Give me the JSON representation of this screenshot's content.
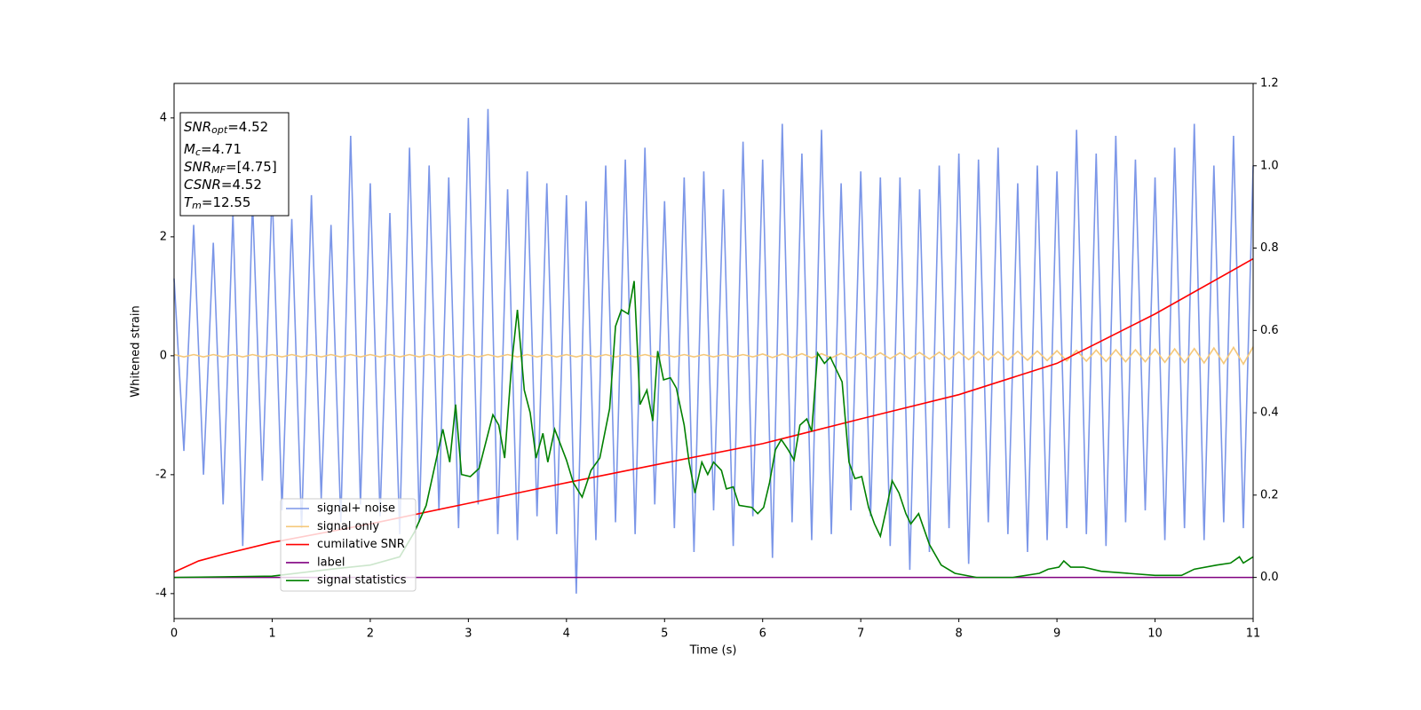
{
  "chart_data": {
    "type": "line",
    "xlabel": "Time (s)",
    "ylabel": "Whitened strain",
    "xlim": [
      0,
      11
    ],
    "xticks": [
      0,
      1,
      2,
      3,
      4,
      5,
      6,
      7,
      8,
      9,
      10,
      11
    ],
    "ylim": [
      -4.42,
      4.58
    ],
    "yticks": [
      -4,
      -2,
      0,
      2,
      4
    ],
    "y2lim": [
      -0.1,
      1.2
    ],
    "y2ticks": [
      {
        "value": 0,
        "label": "0.0"
      },
      {
        "value": 0.2,
        "label": "0.2"
      },
      {
        "value": 0.4,
        "label": "0.4"
      },
      {
        "value": 0.6,
        "label": "0.6"
      },
      {
        "value": 0.8,
        "label": "0.8"
      },
      {
        "value": 1.0,
        "label": "1.0"
      },
      {
        "value": 1.2,
        "label": "1.2"
      }
    ],
    "legend_loc": "lower left",
    "annotations": [
      {
        "main": "SNR",
        "sub": "opt",
        "rest": "=4.52"
      },
      {
        "main": "M",
        "sub": "c",
        "rest": "=4.71"
      },
      {
        "main": "SNR",
        "sub": "MF",
        "rest": "=[4.75]"
      },
      {
        "main": "CSNR",
        "rest": "=4.52"
      },
      {
        "main": "T",
        "sub": "m",
        "rest": "=12.55"
      }
    ],
    "x": [
      0,
      0.1,
      0.2,
      0.3,
      0.4,
      0.5,
      0.6,
      0.7,
      0.8,
      0.9,
      1,
      1.1,
      1.2,
      1.3,
      1.4,
      1.5,
      1.6,
      1.7,
      1.8,
      1.9,
      2,
      2.1,
      2.2,
      2.3,
      2.4,
      2.5,
      2.6,
      2.7,
      2.8,
      2.9,
      3,
      3.1,
      3.2,
      3.3,
      3.4,
      3.5,
      3.6,
      3.7,
      3.8,
      3.9,
      4,
      4.1,
      4.2,
      4.3,
      4.4,
      4.5,
      4.6,
      4.7,
      4.8,
      4.9,
      5,
      5.1,
      5.2,
      5.3,
      5.4,
      5.5,
      5.6,
      5.7,
      5.8,
      5.9,
      6,
      6.1,
      6.2,
      6.3,
      6.4,
      6.5,
      6.6,
      6.7,
      6.8,
      6.9,
      7,
      7.1,
      7.2,
      7.3,
      7.4,
      7.5,
      7.6,
      7.7,
      7.8,
      7.9,
      8,
      8.1,
      8.2,
      8.3,
      8.4,
      8.5,
      8.6,
      8.7,
      8.8,
      8.9,
      9,
      9.1,
      9.2,
      9.3,
      9.4,
      9.5,
      9.6,
      9.7,
      9.8,
      9.9,
      10,
      10.1,
      10.2,
      10.3,
      10.4,
      10.5,
      10.6,
      10.7,
      10.8,
      10.9,
      11
    ],
    "series": [
      {
        "name": "signal+ noise",
        "color": "#7b96e8",
        "values": [
          1.3,
          -1.6,
          2.2,
          -2.0,
          1.9,
          -2.5,
          2.4,
          -3.2,
          2.6,
          -2.1,
          2.8,
          -2.6,
          2.3,
          -2.9,
          2.7,
          -2.4,
          2.2,
          -2.8,
          3.7,
          -2.5,
          2.9,
          -2.7,
          2.4,
          -3.0,
          3.5,
          -2.8,
          3.2,
          -2.6,
          3.0,
          -2.9,
          4.0,
          -2.5,
          4.15,
          -3.0,
          2.8,
          -3.1,
          3.1,
          -2.7,
          2.9,
          -3.0,
          2.7,
          -4.0,
          2.6,
          -3.1,
          3.2,
          -2.8,
          3.3,
          -3.0,
          3.5,
          -2.5,
          2.6,
          -2.9,
          3.0,
          -3.3,
          3.1,
          -2.6,
          2.8,
          -3.2,
          3.6,
          -2.7,
          3.3,
          -3.4,
          3.9,
          -2.8,
          3.4,
          -3.1,
          3.8,
          -3.0,
          2.9,
          -2.6,
          3.1,
          -2.7,
          3.0,
          -3.2,
          3.0,
          -3.6,
          2.8,
          -3.3,
          3.2,
          -2.9,
          3.4,
          -3.5,
          3.3,
          -2.8,
          3.5,
          -3.0,
          2.9,
          -3.3,
          3.2,
          -3.1,
          3.1,
          -2.9,
          3.8,
          -3.0,
          3.4,
          -3.2,
          3.7,
          -2.8,
          3.3,
          -2.6,
          3.0,
          -3.1,
          3.5,
          -2.9,
          3.9,
          -3.1,
          3.2,
          -2.8,
          3.7,
          -2.9,
          3.2
        ]
      },
      {
        "name": "signal only",
        "color": "#f5c87a",
        "values": [
          0.02,
          -0.02,
          0.02,
          -0.02,
          0.02,
          -0.02,
          0.02,
          -0.02,
          0.02,
          -0.02,
          0.02,
          -0.02,
          0.02,
          -0.02,
          0.02,
          -0.02,
          0.02,
          -0.02,
          0.02,
          -0.02,
          0.02,
          -0.02,
          0.02,
          -0.02,
          0.02,
          -0.02,
          0.02,
          -0.02,
          0.02,
          -0.02,
          0.02,
          -0.02,
          0.02,
          -0.02,
          0.02,
          -0.02,
          0.02,
          -0.02,
          0.02,
          -0.02,
          0.02,
          -0.02,
          0.02,
          -0.02,
          0.02,
          -0.02,
          0.02,
          -0.02,
          0.02,
          -0.02,
          0.02,
          -0.02,
          0.02,
          -0.02,
          0.02,
          -0.02,
          0.02,
          -0.02,
          0.02,
          -0.02,
          0.03,
          -0.03,
          0.03,
          -0.03,
          0.035,
          -0.035,
          0.035,
          -0.035,
          0.04,
          -0.04,
          0.045,
          -0.045,
          0.05,
          -0.05,
          0.05,
          -0.05,
          0.055,
          -0.055,
          0.06,
          -0.06,
          0.065,
          -0.065,
          0.07,
          -0.07,
          0.07,
          -0.07,
          0.075,
          -0.075,
          0.08,
          -0.08,
          0.085,
          -0.085,
          0.09,
          -0.09,
          0.095,
          -0.095,
          0.1,
          -0.1,
          0.1,
          -0.1,
          0.11,
          -0.11,
          0.115,
          -0.115,
          0.12,
          -0.12,
          0.13,
          -0.13,
          0.14,
          -0.14,
          0.15
        ]
      },
      {
        "name": "cumilative SNR",
        "color": "#ff0000",
        "axis": "y2",
        "x": [
          0,
          0.25,
          0.5,
          1,
          2,
          3,
          4,
          5,
          6,
          7,
          8,
          9,
          10,
          11
        ],
        "values": [
          0.013,
          0.04,
          0.056,
          0.085,
          0.13,
          0.18,
          0.23,
          0.278,
          0.325,
          0.385,
          0.444,
          0.52,
          0.64,
          0.774
        ]
      },
      {
        "name": "label",
        "color": "#800080",
        "axis": "y2",
        "x": [
          0,
          11
        ],
        "values": [
          0,
          0
        ]
      },
      {
        "name": "signal statistics",
        "color": "#008000",
        "axis": "y2",
        "x": [
          0,
          1.0,
          1.6,
          2.0,
          2.3,
          2.45,
          2.57,
          2.74,
          2.81,
          2.87,
          2.93,
          3.02,
          3.11,
          3.25,
          3.31,
          3.37,
          3.44,
          3.5,
          3.57,
          3.63,
          3.69,
          3.76,
          3.81,
          3.88,
          4.0,
          4.07,
          4.16,
          4.25,
          4.34,
          4.44,
          4.5,
          4.56,
          4.63,
          4.69,
          4.75,
          4.82,
          4.88,
          4.93,
          4.99,
          5.06,
          5.12,
          5.2,
          5.25,
          5.31,
          5.38,
          5.44,
          5.5,
          5.58,
          5.63,
          5.7,
          5.76,
          5.89,
          5.95,
          6.01,
          6.07,
          6.13,
          6.19,
          6.26,
          6.32,
          6.38,
          6.45,
          6.5,
          6.56,
          6.63,
          6.69,
          6.81,
          6.88,
          6.94,
          7.01,
          7.08,
          7.14,
          7.2,
          7.26,
          7.32,
          7.39,
          7.46,
          7.51,
          7.59,
          7.7,
          7.82,
          7.96,
          8.18,
          8.55,
          8.82,
          8.91,
          9.02,
          9.07,
          9.14,
          9.27,
          9.45,
          9.72,
          10.0,
          10.27,
          10.4,
          10.63,
          10.77,
          10.86,
          10.9,
          11
        ],
        "values": [
          0,
          0.003,
          0.02,
          0.03,
          0.05,
          0.11,
          0.175,
          0.36,
          0.28,
          0.42,
          0.25,
          0.245,
          0.265,
          0.395,
          0.37,
          0.29,
          0.515,
          0.65,
          0.455,
          0.4,
          0.29,
          0.35,
          0.28,
          0.36,
          0.285,
          0.23,
          0.195,
          0.26,
          0.29,
          0.41,
          0.61,
          0.65,
          0.64,
          0.72,
          0.42,
          0.455,
          0.38,
          0.55,
          0.48,
          0.485,
          0.46,
          0.37,
          0.28,
          0.205,
          0.28,
          0.25,
          0.28,
          0.26,
          0.215,
          0.22,
          0.175,
          0.17,
          0.155,
          0.17,
          0.23,
          0.31,
          0.335,
          0.31,
          0.285,
          0.37,
          0.385,
          0.355,
          0.545,
          0.52,
          0.535,
          0.475,
          0.28,
          0.24,
          0.245,
          0.17,
          0.13,
          0.1,
          0.165,
          0.235,
          0.205,
          0.155,
          0.13,
          0.155,
          0.08,
          0.03,
          0.01,
          0,
          0,
          0.01,
          0.02,
          0.025,
          0.04,
          0.025,
          0.025,
          0.015,
          0.01,
          0.005,
          0.005,
          0.02,
          0.03,
          0.035,
          0.05,
          0.035,
          0.05
        ]
      }
    ]
  }
}
